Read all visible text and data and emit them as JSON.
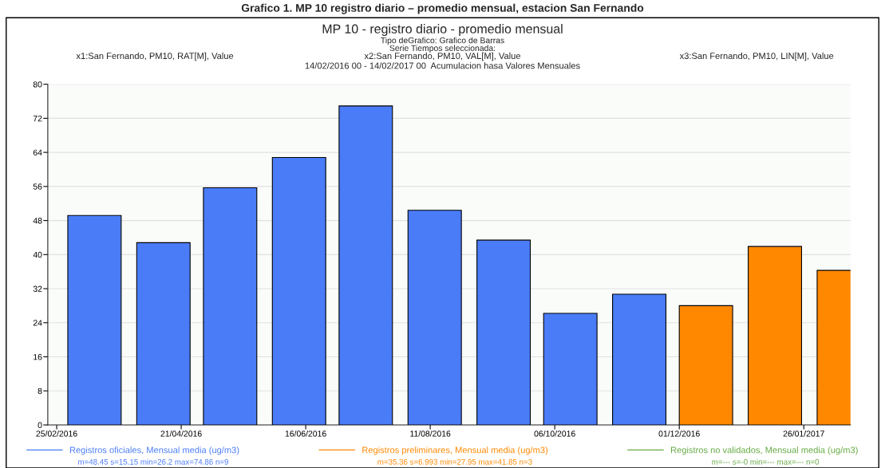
{
  "chart_data": {
    "type": "bar",
    "title": "MP 10 - registro diario - promedio mensual",
    "subtitle": "Tipo deGrafico: Grafico de Barras\nSerie Tiempos seleccionada:",
    "annotations": [
      "Grafico 1. MP 10 registro diario – promedio mensual, estacion San Fernando",
      "x1:San Fernando, PM10, RAT[M], Value",
      "x2:San Fernando, PM10, VAL[M], Value",
      "x3:San Fernando, PM10, LIN[M], Value",
      "14/02/2016 00 - 14/02/2017 00  Acumulacion hasa Valores Mensuales",
      "m=48.45 s=15.15 min=26.2 max=74.86 n=9",
      "m=35.36 s=6.993 min=27.95 max=41.85 n=3",
      "m=--- s=-0 min=--- max=--- n=0"
    ],
    "x": [
      "2016-03",
      "2016-04",
      "2016-05",
      "2016-06",
      "2016-07",
      "2016-08",
      "2016-09",
      "2016-10",
      "2016-11",
      "2016-12",
      "2017-01",
      "2017-02"
    ],
    "series": [
      {
        "name": "Registros oficiales, Mensual media (ug/m3)",
        "color": "#4a7cf7",
        "values": [
          49.2,
          42.8,
          55.7,
          62.8,
          74.9,
          50.4,
          43.4,
          26.2,
          30.7,
          null,
          null,
          null
        ]
      },
      {
        "name": "Registros preliminares, Mensual media (ug/m3)",
        "color": "#ff8800",
        "values": [
          null,
          null,
          null,
          null,
          null,
          null,
          null,
          null,
          null,
          28.0,
          41.9,
          36.3
        ]
      },
      {
        "name": "Registros no validados, Mensual media (ug/m3)",
        "color": "#66aa44",
        "values": [
          null,
          null,
          null,
          null,
          null,
          null,
          null,
          null,
          null,
          null,
          null,
          null
        ]
      }
    ],
    "xlim": [
      "2016-02-21",
      "2017-02-16"
    ],
    "xticks": [
      {
        "value": "2016-02-25",
        "label": "25/02/2016"
      },
      {
        "value": "2016-04-21",
        "label": "21/04/2016"
      },
      {
        "value": "2016-06-16",
        "label": "16/06/2016"
      },
      {
        "value": "2016-08-11",
        "label": "11/08/2016"
      },
      {
        "value": "2016-10-06",
        "label": "06/10/2016"
      },
      {
        "value": "2016-12-01",
        "label": "01/12/2016"
      },
      {
        "value": "2017-01-26",
        "label": "26/01/2017"
      }
    ],
    "ylim": [
      0,
      80
    ],
    "yticks": [
      0,
      8,
      16,
      24,
      32,
      40,
      48,
      56,
      64,
      72,
      80
    ],
    "grid": "y",
    "legend": "bottom"
  }
}
